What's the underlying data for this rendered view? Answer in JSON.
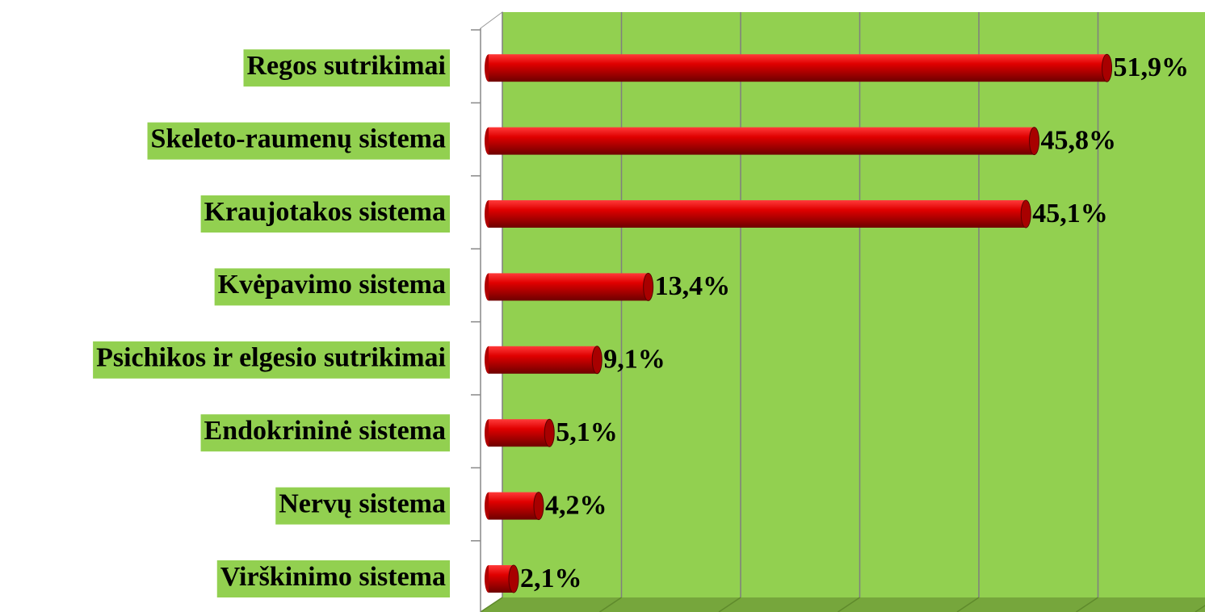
{
  "chart_data": {
    "type": "bar",
    "orientation": "horizontal",
    "categories": [
      "Regos sutrikimai",
      "Skeleto-raumenų sistema",
      "Kraujotakos sistema",
      "Kvėpavimo sistema",
      "Psichikos ir elgesio sutrikimai",
      "Endokrininė sistema",
      "Nervų sistema",
      "Virškinimo sistema"
    ],
    "values": [
      51.9,
      45.8,
      45.1,
      13.4,
      9.1,
      5.1,
      4.2,
      2.1
    ],
    "value_labels": [
      "51,9%",
      "45,8%",
      "45,1%",
      "13,4%",
      "9,1%",
      "5,1%",
      "4,2%",
      "2,1%"
    ],
    "color": "#cc0000",
    "xlim": [
      0,
      60
    ],
    "xticks": [
      0,
      10,
      20,
      30,
      40,
      50,
      60
    ],
    "grid": true
  }
}
